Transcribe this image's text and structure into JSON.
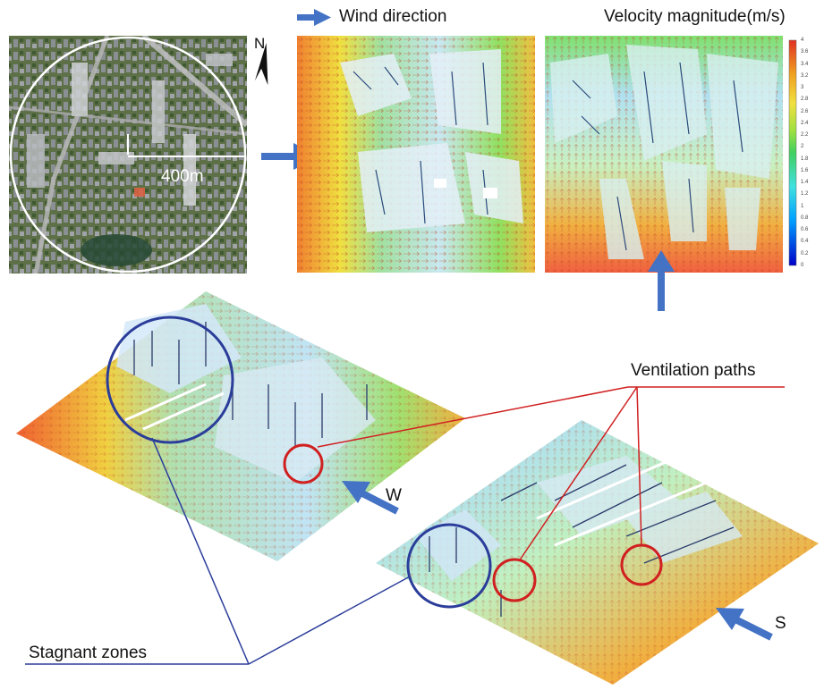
{
  "legend": {
    "wind_direction_label": "Wind direction",
    "velocity_title": "Velocity magnitude(m/s)",
    "colorbar_ticks": [
      "4",
      "3.6",
      "3.4",
      "3.2",
      "3",
      "2.8",
      "2.6",
      "2.4",
      "2.2",
      "2",
      "1.8",
      "1.6",
      "1.4",
      "1.2",
      "1",
      "0.8",
      "0.6",
      "0.4",
      "0.2",
      "0"
    ],
    "colorbar_range": [
      0,
      4
    ],
    "colors": [
      "#0000c8",
      "#00a0ff",
      "#40e0e0",
      "#40d060",
      "#a0e040",
      "#f0e040",
      "#f0a020",
      "#e03020"
    ]
  },
  "map": {
    "north_label": "N",
    "scale_label": "400m"
  },
  "annotations": {
    "ventilation_paths": "Ventilation paths",
    "stagnant_zones": "Stagnant zones",
    "west_label": "W",
    "south_label": "S"
  },
  "style": {
    "arrow_color": "#4472c4",
    "ventilation_color": "#d02020",
    "stagnant_color": "#2b3d9a"
  }
}
